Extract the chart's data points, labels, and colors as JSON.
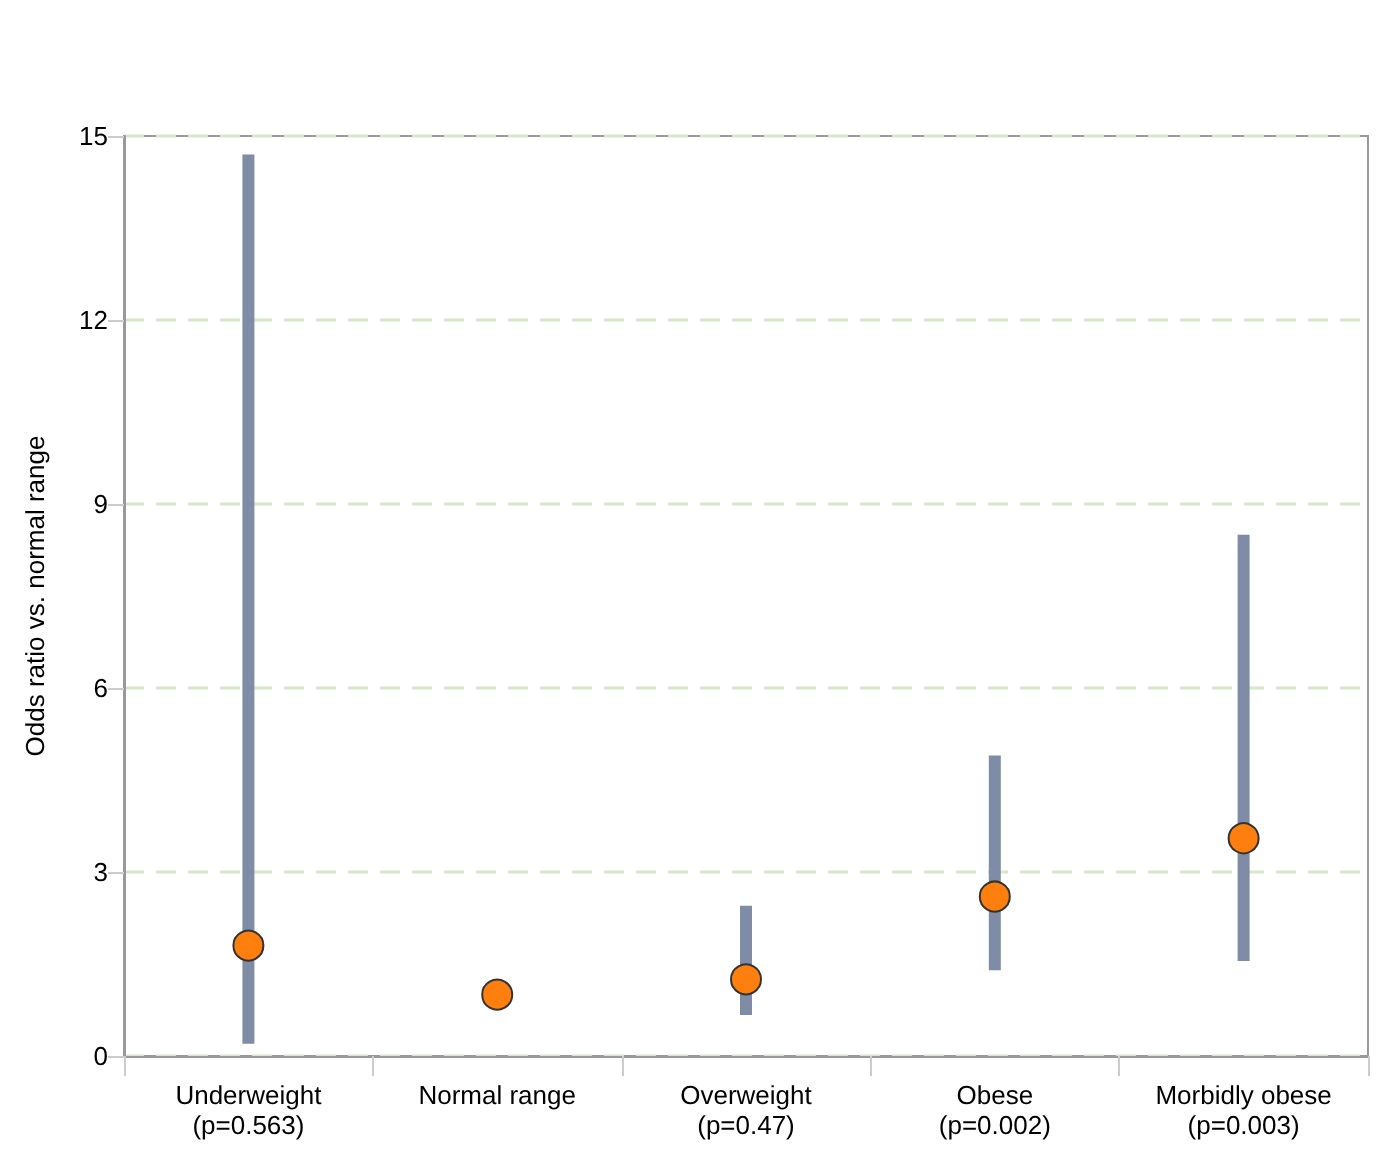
{
  "chart_data": {
    "type": "scatter",
    "ylabel": "Odds ratio vs. normal range",
    "categories": [
      "Underweight\n(p=0.563)",
      "Normal range",
      "Overweight\n(p=0.47)",
      "Obese\n(p=0.002)",
      "Morbidly obese\n(p=0.003)"
    ],
    "values": [
      1.8,
      1.0,
      1.25,
      2.6,
      3.55
    ],
    "errors": [
      [
        0.2,
        14.7
      ],
      null,
      [
        0.67,
        2.45
      ],
      [
        1.4,
        4.9
      ],
      [
        1.55,
        8.5
      ]
    ],
    "color": "#ff7f0e",
    "ylim": [
      0,
      15
    ],
    "yticks": [
      0,
      3,
      6,
      9,
      12,
      15
    ],
    "grid": "y",
    "marker": "circle"
  }
}
